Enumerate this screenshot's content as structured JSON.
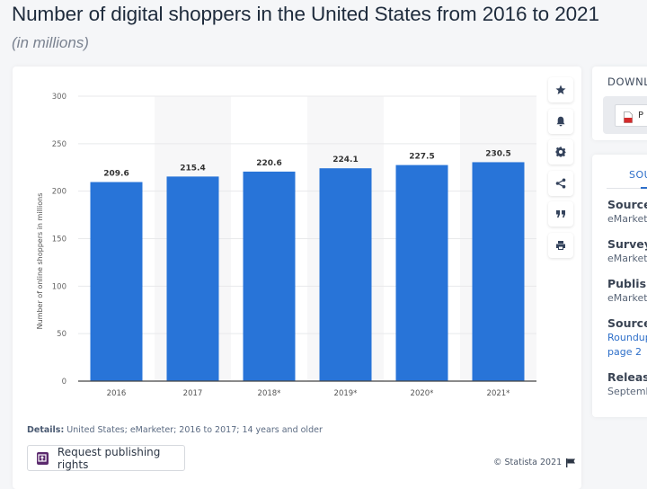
{
  "header": {
    "title": "Number of digital shoppers in the United States from 2016 to 2021",
    "subtitle": "(in millions)"
  },
  "chart_data": {
    "type": "bar",
    "title": "Number of digital shoppers in the United States from 2016 to 2021",
    "subtitle": "(in millions)",
    "categories": [
      "2016",
      "2017",
      "2018*",
      "2019*",
      "2020*",
      "2021*"
    ],
    "values": [
      209.6,
      215.4,
      220.6,
      224.1,
      227.5,
      230.5
    ],
    "value_labels": [
      "209.6",
      "215.4",
      "220.6",
      "224.1",
      "227.5",
      "230.5"
    ],
    "xlabel": "",
    "ylabel": "Number of online shoppers in millions",
    "ylim": [
      0,
      300
    ],
    "yticks": [
      0,
      50,
      100,
      150,
      200,
      250,
      300
    ],
    "grid": true,
    "legend": "none",
    "bar_color": "#2874d8",
    "alternate_column_shading": true
  },
  "toolbar": {
    "buttons": [
      {
        "name": "favorite",
        "icon": "star-icon"
      },
      {
        "name": "notification",
        "icon": "bell-icon"
      },
      {
        "name": "settings",
        "icon": "gear-icon"
      },
      {
        "name": "share",
        "icon": "share-icon"
      },
      {
        "name": "citation",
        "icon": "quote-icon"
      },
      {
        "name": "print",
        "icon": "print-icon"
      }
    ]
  },
  "footer": {
    "details_label": "Details:",
    "details_text": "United States; eMarketer; 2016 to 2017; 14 years and older",
    "publishing_button": "Request publishing rights",
    "copyright": "© Statista 2021"
  },
  "side_panel": {
    "download_title": "DOWNL",
    "pdf_label": "P",
    "sources_tab": "SOU",
    "items": [
      {
        "label": "Source",
        "value": "eMarket"
      },
      {
        "label": "Survey",
        "value": "eMarket"
      },
      {
        "label": "Publish",
        "value": "eMarket"
      },
      {
        "label": "Source",
        "value": "Roundup",
        "value2": "page 2",
        "link": true
      },
      {
        "label": "Release",
        "value": "Septemb"
      }
    ]
  }
}
